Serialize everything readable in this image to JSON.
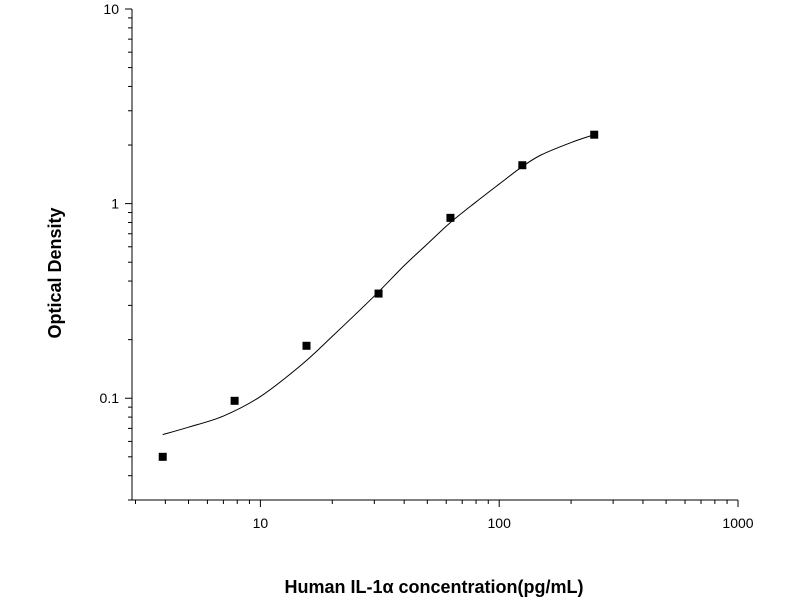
{
  "chart_data": {
    "type": "scatter",
    "xlabel": "Human IL-1α  concentration(pg/mL)",
    "ylabel": "Optical Density",
    "x_scale": "log",
    "y_scale": "log",
    "xlim": [
      2.9,
      1000
    ],
    "ylim": [
      0.03,
      10
    ],
    "x_ticks": [
      10,
      100,
      1000
    ],
    "x_tick_labels": [
      "10",
      "100",
      "1000"
    ],
    "y_ticks": [
      0.1,
      1,
      10
    ],
    "y_tick_labels": [
      "0.1",
      "1",
      "10"
    ],
    "grid": false,
    "points": [
      {
        "x": 3.9,
        "y": 0.05
      },
      {
        "x": 7.8,
        "y": 0.097
      },
      {
        "x": 15.6,
        "y": 0.186
      },
      {
        "x": 31.25,
        "y": 0.345
      },
      {
        "x": 62.5,
        "y": 0.845
      },
      {
        "x": 125,
        "y": 1.575
      },
      {
        "x": 250,
        "y": 2.26
      }
    ],
    "fit_curve": [
      {
        "x": 3.9,
        "y": 0.065
      },
      {
        "x": 5,
        "y": 0.071
      },
      {
        "x": 7,
        "y": 0.081
      },
      {
        "x": 10,
        "y": 0.102
      },
      {
        "x": 15,
        "y": 0.15
      },
      {
        "x": 20,
        "y": 0.208
      },
      {
        "x": 30,
        "y": 0.335
      },
      {
        "x": 40,
        "y": 0.48
      },
      {
        "x": 50,
        "y": 0.62
      },
      {
        "x": 62.5,
        "y": 0.8
      },
      {
        "x": 80,
        "y": 1.02
      },
      {
        "x": 100,
        "y": 1.26
      },
      {
        "x": 125,
        "y": 1.55
      },
      {
        "x": 150,
        "y": 1.78
      },
      {
        "x": 200,
        "y": 2.06
      },
      {
        "x": 250,
        "y": 2.26
      }
    ]
  }
}
